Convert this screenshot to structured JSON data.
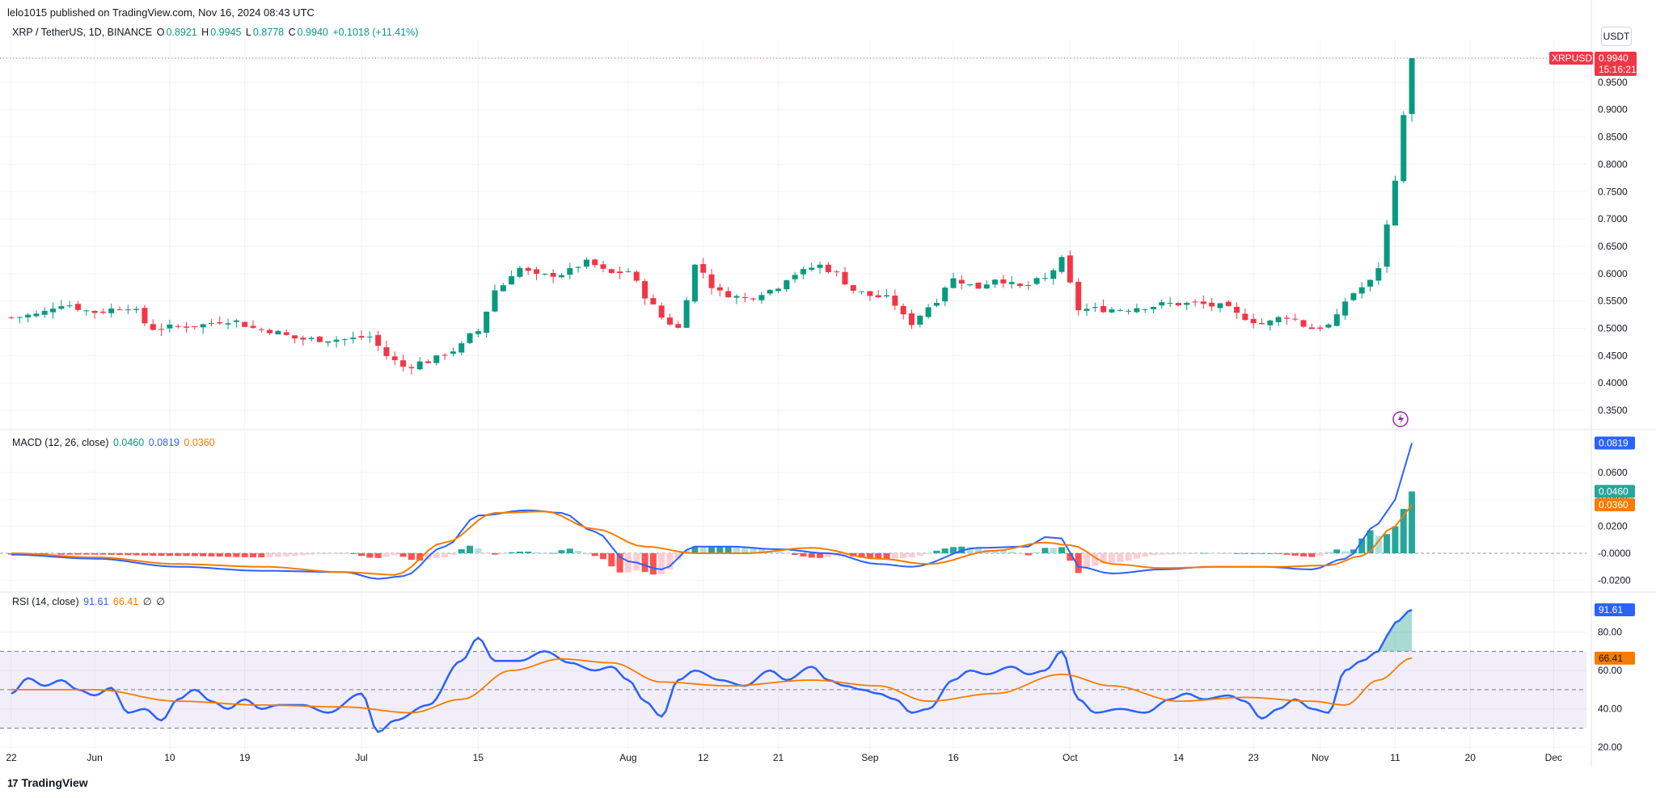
{
  "header": {
    "published": "lelo1015 published on TradingView.com, Nov 16, 2024 08:43 UTC"
  },
  "price_legend": {
    "symbol": "XRP / TetherUS, 1D, BINANCE",
    "o_label": "O",
    "o": "0.8921",
    "h_label": "H",
    "h": "0.9945",
    "l_label": "L",
    "l": "0.8778",
    "c_label": "C",
    "c": "0.9940",
    "change": "+0.1018 (+11.41%)"
  },
  "macd_legend": {
    "label": "MACD (12, 26, close)",
    "hist": "0.0460",
    "macd": "0.0819",
    "signal": "0.0360"
  },
  "rsi_legend": {
    "label": "RSI (14, close)",
    "rsi": "91.61",
    "ma": "66.41",
    "x1": "∅",
    "x2": "∅"
  },
  "unit": "USDT",
  "price_tag": {
    "symbol": "XRPUSDT",
    "price": "0.9940",
    "countdown": "15:16:21"
  },
  "macd_tags": {
    "macd": "0.0819",
    "hist": "0.0460",
    "signal": "0.0360"
  },
  "rsi_tags": {
    "rsi": "91.61",
    "ma": "66.41"
  },
  "footer": {
    "brand": "TradingView",
    "logo": "17"
  },
  "colors": {
    "up": "#089981",
    "down": "#f23645",
    "macd": "#2962ff",
    "signal": "#f57c00",
    "rsi": "#2962ff",
    "rsi_ma": "#f57c00",
    "rsi_band": "#7e57c2"
  },
  "chart_data": [
    {
      "type": "candlestick",
      "yticks": [
        "0.3500",
        "0.4000",
        "0.4500",
        "0.5000",
        "0.5500",
        "0.6000",
        "0.6500",
        "0.7000",
        "0.7500",
        "0.8000",
        "0.8500",
        "0.9000",
        "0.9500"
      ],
      "ytick_values": [
        0.35,
        0.4,
        0.45,
        0.5,
        0.55,
        0.6,
        0.65,
        0.7,
        0.75,
        0.8,
        0.85,
        0.9,
        0.95
      ],
      "ylim": [
        0.325,
        1.0
      ],
      "xticks": [
        "22",
        "Jun",
        "10",
        "19",
        "Jul",
        "15",
        "Aug",
        "12",
        "21",
        "Sep",
        "16",
        "Oct",
        "14",
        "23",
        "Nov",
        "11",
        "20",
        "Dec"
      ],
      "xtick_days": [
        0,
        10,
        19,
        28,
        42,
        56,
        74,
        83,
        92,
        103,
        113,
        127,
        140,
        149,
        157,
        166,
        175,
        185
      ],
      "close_anchors": [
        [
          0,
          0.52
        ],
        [
          3,
          0.525
        ],
        [
          6,
          0.545
        ],
        [
          10,
          0.53
        ],
        [
          14,
          0.54
        ],
        [
          17,
          0.5
        ],
        [
          22,
          0.505
        ],
        [
          26,
          0.515
        ],
        [
          30,
          0.498
        ],
        [
          35,
          0.48
        ],
        [
          40,
          0.48
        ],
        [
          43,
          0.485
        ],
        [
          45,
          0.45
        ],
        [
          47,
          0.43
        ],
        [
          50,
          0.44
        ],
        [
          53,
          0.46
        ],
        [
          56,
          0.495
        ],
        [
          58,
          0.57
        ],
        [
          61,
          0.61
        ],
        [
          63,
          0.595
        ],
        [
          66,
          0.6
        ],
        [
          69,
          0.62
        ],
        [
          72,
          0.6
        ],
        [
          74,
          0.605
        ],
        [
          76,
          0.56
        ],
        [
          78,
          0.52
        ],
        [
          80,
          0.5
        ],
        [
          82,
          0.615
        ],
        [
          85,
          0.565
        ],
        [
          88,
          0.555
        ],
        [
          91,
          0.57
        ],
        [
          94,
          0.6
        ],
        [
          97,
          0.615
        ],
        [
          99,
          0.6
        ],
        [
          101,
          0.57
        ],
        [
          103,
          0.56
        ],
        [
          105,
          0.555
        ],
        [
          108,
          0.51
        ],
        [
          110,
          0.54
        ],
        [
          113,
          0.59
        ],
        [
          116,
          0.575
        ],
        [
          118,
          0.592
        ],
        [
          121,
          0.575
        ],
        [
          124,
          0.59
        ],
        [
          126,
          0.625
        ],
        [
          128,
          0.535
        ],
        [
          130,
          0.535
        ],
        [
          133,
          0.535
        ],
        [
          136,
          0.54
        ],
        [
          139,
          0.545
        ],
        [
          142,
          0.545
        ],
        [
          145,
          0.54
        ],
        [
          148,
          0.52
        ],
        [
          150,
          0.508
        ],
        [
          153,
          0.522
        ],
        [
          156,
          0.5
        ],
        [
          158,
          0.505
        ],
        [
          161,
          0.565
        ],
        [
          163,
          0.585
        ],
        [
          164,
          0.61
        ],
        [
          165,
          0.69
        ],
        [
          166,
          0.77
        ],
        [
          167,
          0.89
        ],
        [
          168,
          0.994
        ]
      ],
      "last": {
        "open": 0.8921,
        "high": 0.9945,
        "low": 0.8778,
        "close": 0.994
      }
    },
    {
      "type": "line+histogram",
      "name": "MACD (12, 26, close)",
      "yticks": [
        "0.0600",
        "0.0400",
        "0.0200",
        "-0.0000",
        "-0.0200"
      ],
      "ytick_values": [
        0.06,
        0.04,
        0.02,
        0.0,
        -0.02
      ],
      "ylim": [
        -0.027,
        0.087
      ],
      "macd_anchors": [
        [
          0,
          -0.001
        ],
        [
          10,
          -0.004
        ],
        [
          20,
          -0.01
        ],
        [
          30,
          -0.013
        ],
        [
          40,
          -0.014
        ],
        [
          44,
          -0.019
        ],
        [
          47,
          -0.017
        ],
        [
          52,
          0.005
        ],
        [
          56,
          0.028
        ],
        [
          62,
          0.032
        ],
        [
          66,
          0.03
        ],
        [
          70,
          0.016
        ],
        [
          74,
          -0.006
        ],
        [
          78,
          -0.012
        ],
        [
          82,
          0.005
        ],
        [
          86,
          0.005
        ],
        [
          92,
          0.003
        ],
        [
          98,
          0.0
        ],
        [
          104,
          -0.008
        ],
        [
          108,
          -0.01
        ],
        [
          116,
          0.004
        ],
        [
          122,
          0.005
        ],
        [
          124,
          0.012
        ],
        [
          126,
          0.011
        ],
        [
          128,
          -0.01
        ],
        [
          132,
          -0.015
        ],
        [
          138,
          -0.012
        ],
        [
          144,
          -0.01
        ],
        [
          150,
          -0.01
        ],
        [
          156,
          -0.012
        ],
        [
          160,
          -0.004
        ],
        [
          164,
          0.022
        ],
        [
          166,
          0.04
        ],
        [
          168,
          0.0819
        ]
      ],
      "signal_anchors": [
        [
          0,
          0.0
        ],
        [
          10,
          -0.003
        ],
        [
          20,
          -0.008
        ],
        [
          30,
          -0.01
        ],
        [
          40,
          -0.014
        ],
        [
          46,
          -0.016
        ],
        [
          52,
          0.008
        ],
        [
          58,
          0.03
        ],
        [
          64,
          0.031
        ],
        [
          70,
          0.018
        ],
        [
          76,
          0.005
        ],
        [
          82,
          0.0
        ],
        [
          88,
          0.0
        ],
        [
          96,
          0.004
        ],
        [
          104,
          -0.004
        ],
        [
          110,
          -0.008
        ],
        [
          118,
          0.002
        ],
        [
          124,
          0.008
        ],
        [
          127,
          0.006
        ],
        [
          132,
          -0.008
        ],
        [
          138,
          -0.011
        ],
        [
          146,
          -0.01
        ],
        [
          152,
          -0.01
        ],
        [
          158,
          -0.009
        ],
        [
          162,
          -0.002
        ],
        [
          166,
          0.02
        ],
        [
          168,
          0.036
        ]
      ]
    },
    {
      "type": "line",
      "name": "RSI (14, close)",
      "yticks": [
        "80.00",
        "60.00",
        "40.00",
        "20.00"
      ],
      "ytick_values": [
        80,
        60,
        40,
        20
      ],
      "ylim": [
        18,
        100
      ],
      "bands": [
        70,
        50,
        30
      ],
      "rsi_anchors": [
        [
          0,
          48
        ],
        [
          2,
          56
        ],
        [
          4,
          52
        ],
        [
          6,
          55
        ],
        [
          8,
          50
        ],
        [
          10,
          47
        ],
        [
          12,
          51
        ],
        [
          14,
          38
        ],
        [
          16,
          40
        ],
        [
          18,
          34
        ],
        [
          20,
          45
        ],
        [
          22,
          50
        ],
        [
          24,
          44
        ],
        [
          26,
          40
        ],
        [
          28,
          45
        ],
        [
          30,
          40
        ],
        [
          32,
          42
        ],
        [
          35,
          42
        ],
        [
          38,
          38
        ],
        [
          42,
          48
        ],
        [
          44,
          28
        ],
        [
          46,
          34
        ],
        [
          50,
          42
        ],
        [
          54,
          65
        ],
        [
          56,
          77
        ],
        [
          58,
          65
        ],
        [
          61,
          65
        ],
        [
          64,
          70
        ],
        [
          67,
          64
        ],
        [
          70,
          60
        ],
        [
          72,
          62
        ],
        [
          74,
          55
        ],
        [
          76,
          44
        ],
        [
          78,
          36
        ],
        [
          80,
          55
        ],
        [
          82,
          60
        ],
        [
          85,
          55
        ],
        [
          88,
          52
        ],
        [
          91,
          60
        ],
        [
          93,
          55
        ],
        [
          96,
          62
        ],
        [
          98,
          55
        ],
        [
          100,
          52
        ],
        [
          102,
          50
        ],
        [
          104,
          48
        ],
        [
          106,
          45
        ],
        [
          108,
          38
        ],
        [
          110,
          40
        ],
        [
          113,
          55
        ],
        [
          115,
          60
        ],
        [
          117,
          58
        ],
        [
          120,
          62
        ],
        [
          122,
          58
        ],
        [
          124,
          60
        ],
        [
          126,
          70
        ],
        [
          128,
          45
        ],
        [
          130,
          38
        ],
        [
          133,
          40
        ],
        [
          136,
          38
        ],
        [
          139,
          45
        ],
        [
          141,
          48
        ],
        [
          143,
          45
        ],
        [
          146,
          47
        ],
        [
          148,
          44
        ],
        [
          150,
          35
        ],
        [
          152,
          40
        ],
        [
          154,
          45
        ],
        [
          156,
          40
        ],
        [
          158,
          38
        ],
        [
          160,
          60
        ],
        [
          162,
          65
        ],
        [
          164,
          70
        ],
        [
          165,
          78
        ],
        [
          166,
          85
        ],
        [
          168,
          91.61
        ]
      ],
      "ma_anchors": [
        [
          0,
          50
        ],
        [
          10,
          50
        ],
        [
          20,
          44
        ],
        [
          30,
          42
        ],
        [
          40,
          41
        ],
        [
          48,
          38
        ],
        [
          54,
          45
        ],
        [
          60,
          60
        ],
        [
          66,
          66
        ],
        [
          72,
          64
        ],
        [
          78,
          54
        ],
        [
          86,
          52
        ],
        [
          96,
          55
        ],
        [
          104,
          52
        ],
        [
          110,
          44
        ],
        [
          118,
          48
        ],
        [
          126,
          58
        ],
        [
          132,
          52
        ],
        [
          140,
          44
        ],
        [
          148,
          46
        ],
        [
          156,
          44
        ],
        [
          160,
          42
        ],
        [
          164,
          55
        ],
        [
          168,
          66.41
        ]
      ]
    }
  ]
}
